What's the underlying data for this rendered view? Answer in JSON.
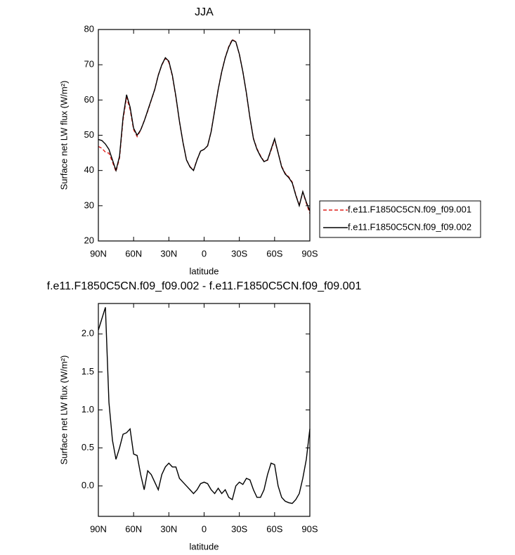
{
  "chart_data": [
    {
      "type": "line",
      "title": "JJA",
      "xlabel": "latitude",
      "ylabel": "Surface net LW flux (W/m²)",
      "x": [
        90,
        87,
        84,
        81,
        78,
        75,
        72,
        69,
        66,
        63,
        60,
        57,
        54,
        51,
        48,
        45,
        42,
        39,
        36,
        33,
        30,
        27,
        24,
        21,
        18,
        15,
        12,
        9,
        6,
        3,
        0,
        -3,
        -6,
        -9,
        -12,
        -15,
        -18,
        -21,
        -24,
        -27,
        -30,
        -33,
        -36,
        -39,
        -42,
        -45,
        -48,
        -51,
        -54,
        -57,
        -60,
        -63,
        -66,
        -69,
        -72,
        -75,
        -78,
        -81,
        -84,
        -87,
        -90
      ],
      "xlim": [
        90,
        -90
      ],
      "xticks": [
        {
          "value": 90,
          "label": "90N"
        },
        {
          "value": 60,
          "label": "60N"
        },
        {
          "value": 30,
          "label": "30N"
        },
        0,
        {
          "value": -30,
          "label": "30S"
        },
        {
          "value": -60,
          "label": "60S"
        },
        {
          "value": -90,
          "label": "90S"
        }
      ],
      "ylim": [
        20,
        80
      ],
      "yticks": [
        20,
        30,
        40,
        50,
        60,
        70,
        80
      ],
      "legend": "right",
      "series": [
        {
          "name": "f.e11.F1850C5CN.f09_f09.001",
          "color": "#e0201b",
          "line_style": "dashed",
          "values": [
            46.8,
            46.3,
            45.2,
            44.9,
            42.4,
            39.7,
            43.5,
            54.3,
            60.8,
            57.3,
            51.6,
            49.6,
            51.4,
            54.1,
            56.8,
            59.9,
            63.0,
            67.1,
            69.9,
            71.8,
            70.7,
            66.8,
            60.8,
            53.9,
            48.0,
            43.0,
            41.1,
            40.1,
            43.1,
            45.5,
            46.0,
            47.0,
            51.1,
            57.1,
            63.0,
            68.1,
            72.1,
            75.2,
            77.2,
            76.5,
            73.0,
            68.0,
            61.9,
            54.9,
            49.1,
            46.2,
            44.2,
            42.6,
            42.9,
            45.7,
            48.7,
            45.0,
            41.2,
            39.2,
            38.2,
            36.7,
            33.2,
            30.1,
            33.9,
            30.7,
            27.8
          ]
        },
        {
          "name": "f.e11.F1850C5CN.f09_f09.002",
          "color": "#000000",
          "line_style": "solid",
          "values": [
            48.8,
            48.5,
            47.5,
            46,
            43,
            40,
            44,
            55,
            61.5,
            58,
            52,
            50,
            51.5,
            54,
            57,
            60,
            63,
            67,
            70,
            72,
            71,
            67,
            61,
            54,
            48,
            43,
            41,
            40,
            43,
            45.5,
            46,
            47,
            51,
            57,
            63,
            68,
            72,
            75,
            77,
            76.5,
            73,
            68,
            62,
            55,
            49,
            46,
            44,
            42.5,
            43,
            46,
            49,
            45,
            41,
            39,
            38,
            36.5,
            33,
            30,
            34,
            31,
            28.5
          ]
        }
      ]
    },
    {
      "type": "line",
      "title": "f.e11.F1850C5CN.f09_f09.002 - f.e11.F1850C5CN.f09_f09.001",
      "xlabel": "latitude",
      "ylabel": "Surface net LW flux (W/m²)",
      "x": [
        90,
        87,
        84,
        81,
        78,
        75,
        72,
        69,
        66,
        63,
        60,
        57,
        54,
        51,
        48,
        45,
        42,
        39,
        36,
        33,
        30,
        27,
        24,
        21,
        18,
        15,
        12,
        9,
        6,
        3,
        0,
        -3,
        -6,
        -9,
        -12,
        -15,
        -18,
        -21,
        -24,
        -27,
        -30,
        -33,
        -36,
        -39,
        -42,
        -45,
        -48,
        -51,
        -54,
        -57,
        -60,
        -63,
        -66,
        -69,
        -72,
        -75,
        -78,
        -81,
        -84,
        -87,
        -90
      ],
      "xlim": [
        90,
        -90
      ],
      "xticks": [
        {
          "value": 90,
          "label": "90N"
        },
        {
          "value": 60,
          "label": "60N"
        },
        {
          "value": 30,
          "label": "30N"
        },
        0,
        {
          "value": -30,
          "label": "30S"
        },
        {
          "value": -60,
          "label": "60S"
        },
        {
          "value": -90,
          "label": "90S"
        }
      ],
      "ylim": [
        -0.4,
        2.4
      ],
      "yticks": [
        {
          "value": 0,
          "label": "0.0"
        },
        {
          "value": 0.5,
          "label": "0.5"
        },
        {
          "value": 1,
          "label": "1.0"
        },
        {
          "value": 1.5,
          "label": "1.5"
        },
        {
          "value": 2,
          "label": "2.0"
        }
      ],
      "color": "#000000",
      "values": [
        2.05,
        2.2,
        2.35,
        1.1,
        0.6,
        0.35,
        0.5,
        0.68,
        0.7,
        0.75,
        0.42,
        0.4,
        0.15,
        -0.05,
        0.2,
        0.15,
        0.05,
        -0.05,
        0.15,
        0.25,
        0.3,
        0.25,
        0.25,
        0.1,
        0.05,
        0,
        -0.05,
        -0.1,
        -0.05,
        0.03,
        0.05,
        0.03,
        -0.05,
        -0.1,
        -0.03,
        -0.1,
        -0.05,
        -0.15,
        -0.18,
        0,
        0.05,
        0.02,
        0.1,
        0.08,
        -0.05,
        -0.15,
        -0.15,
        -0.05,
        0.15,
        0.3,
        0.28,
        0,
        -0.15,
        -0.2,
        -0.22,
        -0.23,
        -0.18,
        -0.1,
        0.1,
        0.35,
        0.75
      ]
    }
  ]
}
